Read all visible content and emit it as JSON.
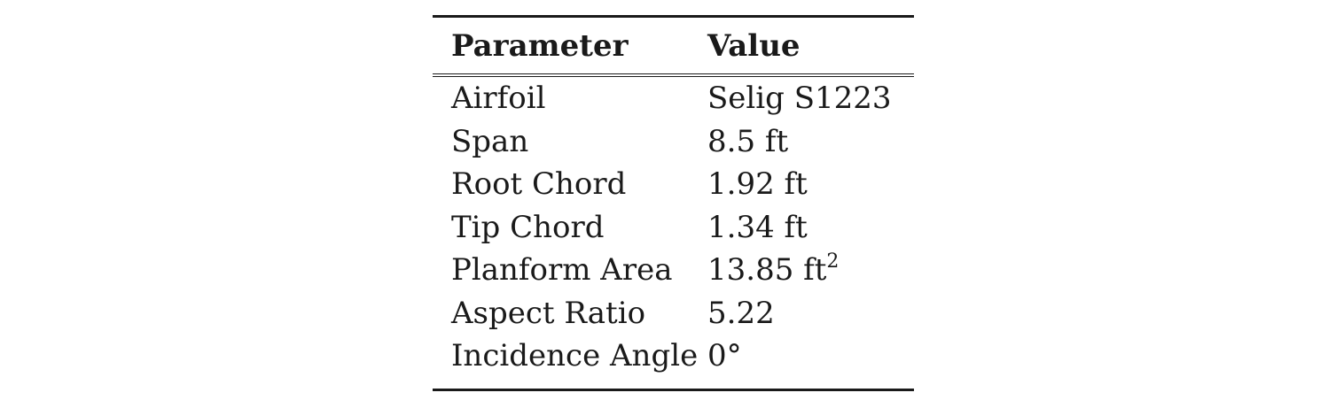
{
  "table": {
    "headers": {
      "parameter": "Parameter",
      "value": "Value"
    },
    "rows": [
      {
        "parameter": "Airfoil",
        "value": "Selig S1223",
        "exponent": ""
      },
      {
        "parameter": "Span",
        "value": "8.5 ft",
        "exponent": ""
      },
      {
        "parameter": "Root Chord",
        "value": "1.92 ft",
        "exponent": ""
      },
      {
        "parameter": "Tip Chord",
        "value": "1.34 ft",
        "exponent": ""
      },
      {
        "parameter": "Planform Area",
        "value": "13.85 ft",
        "exponent": "2"
      },
      {
        "parameter": "Aspect Ratio",
        "value": "5.22",
        "exponent": ""
      },
      {
        "parameter": "Incidence Angle",
        "value": "0°",
        "exponent": ""
      }
    ]
  }
}
